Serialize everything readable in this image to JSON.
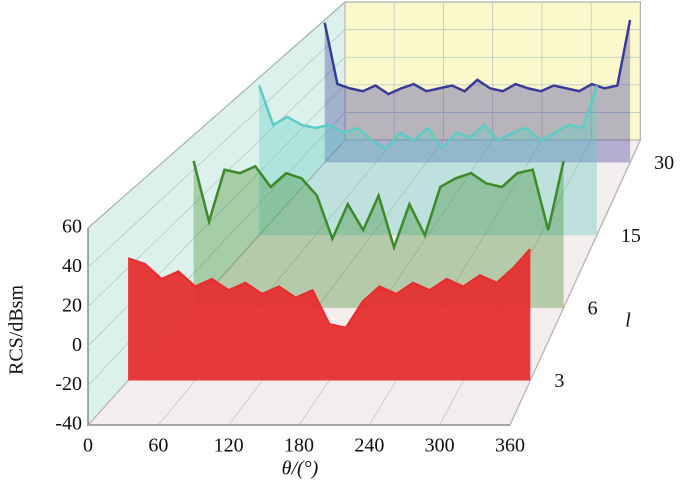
{
  "chart_data": {
    "type": "waterfall",
    "x_label": "θ/(°)",
    "y_label": "RCS/dBsm",
    "z_label": "l",
    "x": [
      0,
      15,
      30,
      45,
      60,
      75,
      90,
      105,
      120,
      135,
      150,
      165,
      180,
      195,
      210,
      225,
      240,
      255,
      270,
      285,
      300,
      315,
      330,
      345,
      360
    ],
    "xlim": [
      0,
      360
    ],
    "xticks": [
      0,
      60,
      120,
      180,
      240,
      300,
      360
    ],
    "ylim": [
      -40,
      60
    ],
    "yticks": [
      -40,
      -20,
      0,
      20,
      40,
      60
    ],
    "categories": [
      "3",
      "6",
      "15",
      "30"
    ],
    "series": [
      {
        "name": "3",
        "color": "#e53030",
        "values": [
          25,
          22,
          14,
          18,
          10,
          14,
          8,
          12,
          6,
          10,
          4,
          8,
          -10,
          -12,
          2,
          10,
          6,
          12,
          8,
          14,
          10,
          16,
          12,
          20,
          30
        ]
      },
      {
        "name": "6",
        "color": "#3d8a2a",
        "values": [
          45,
          10,
          40,
          38,
          42,
          30,
          38,
          35,
          25,
          0,
          20,
          5,
          25,
          -5,
          20,
          2,
          30,
          35,
          38,
          32,
          30,
          38,
          40,
          5,
          45
        ]
      },
      {
        "name": "15",
        "color": "#5cccc4",
        "values": [
          55,
          30,
          35,
          30,
          28,
          30,
          25,
          28,
          20,
          15,
          25,
          20,
          28,
          15,
          25,
          22,
          30,
          20,
          25,
          28,
          20,
          25,
          30,
          28,
          55
        ]
      },
      {
        "name": "30",
        "color": "#3a3a9a",
        "values": [
          58,
          15,
          12,
          10,
          14,
          8,
          12,
          15,
          10,
          12,
          14,
          10,
          18,
          12,
          10,
          15,
          12,
          10,
          14,
          12,
          10,
          15,
          12,
          14,
          60
        ]
      }
    ]
  }
}
